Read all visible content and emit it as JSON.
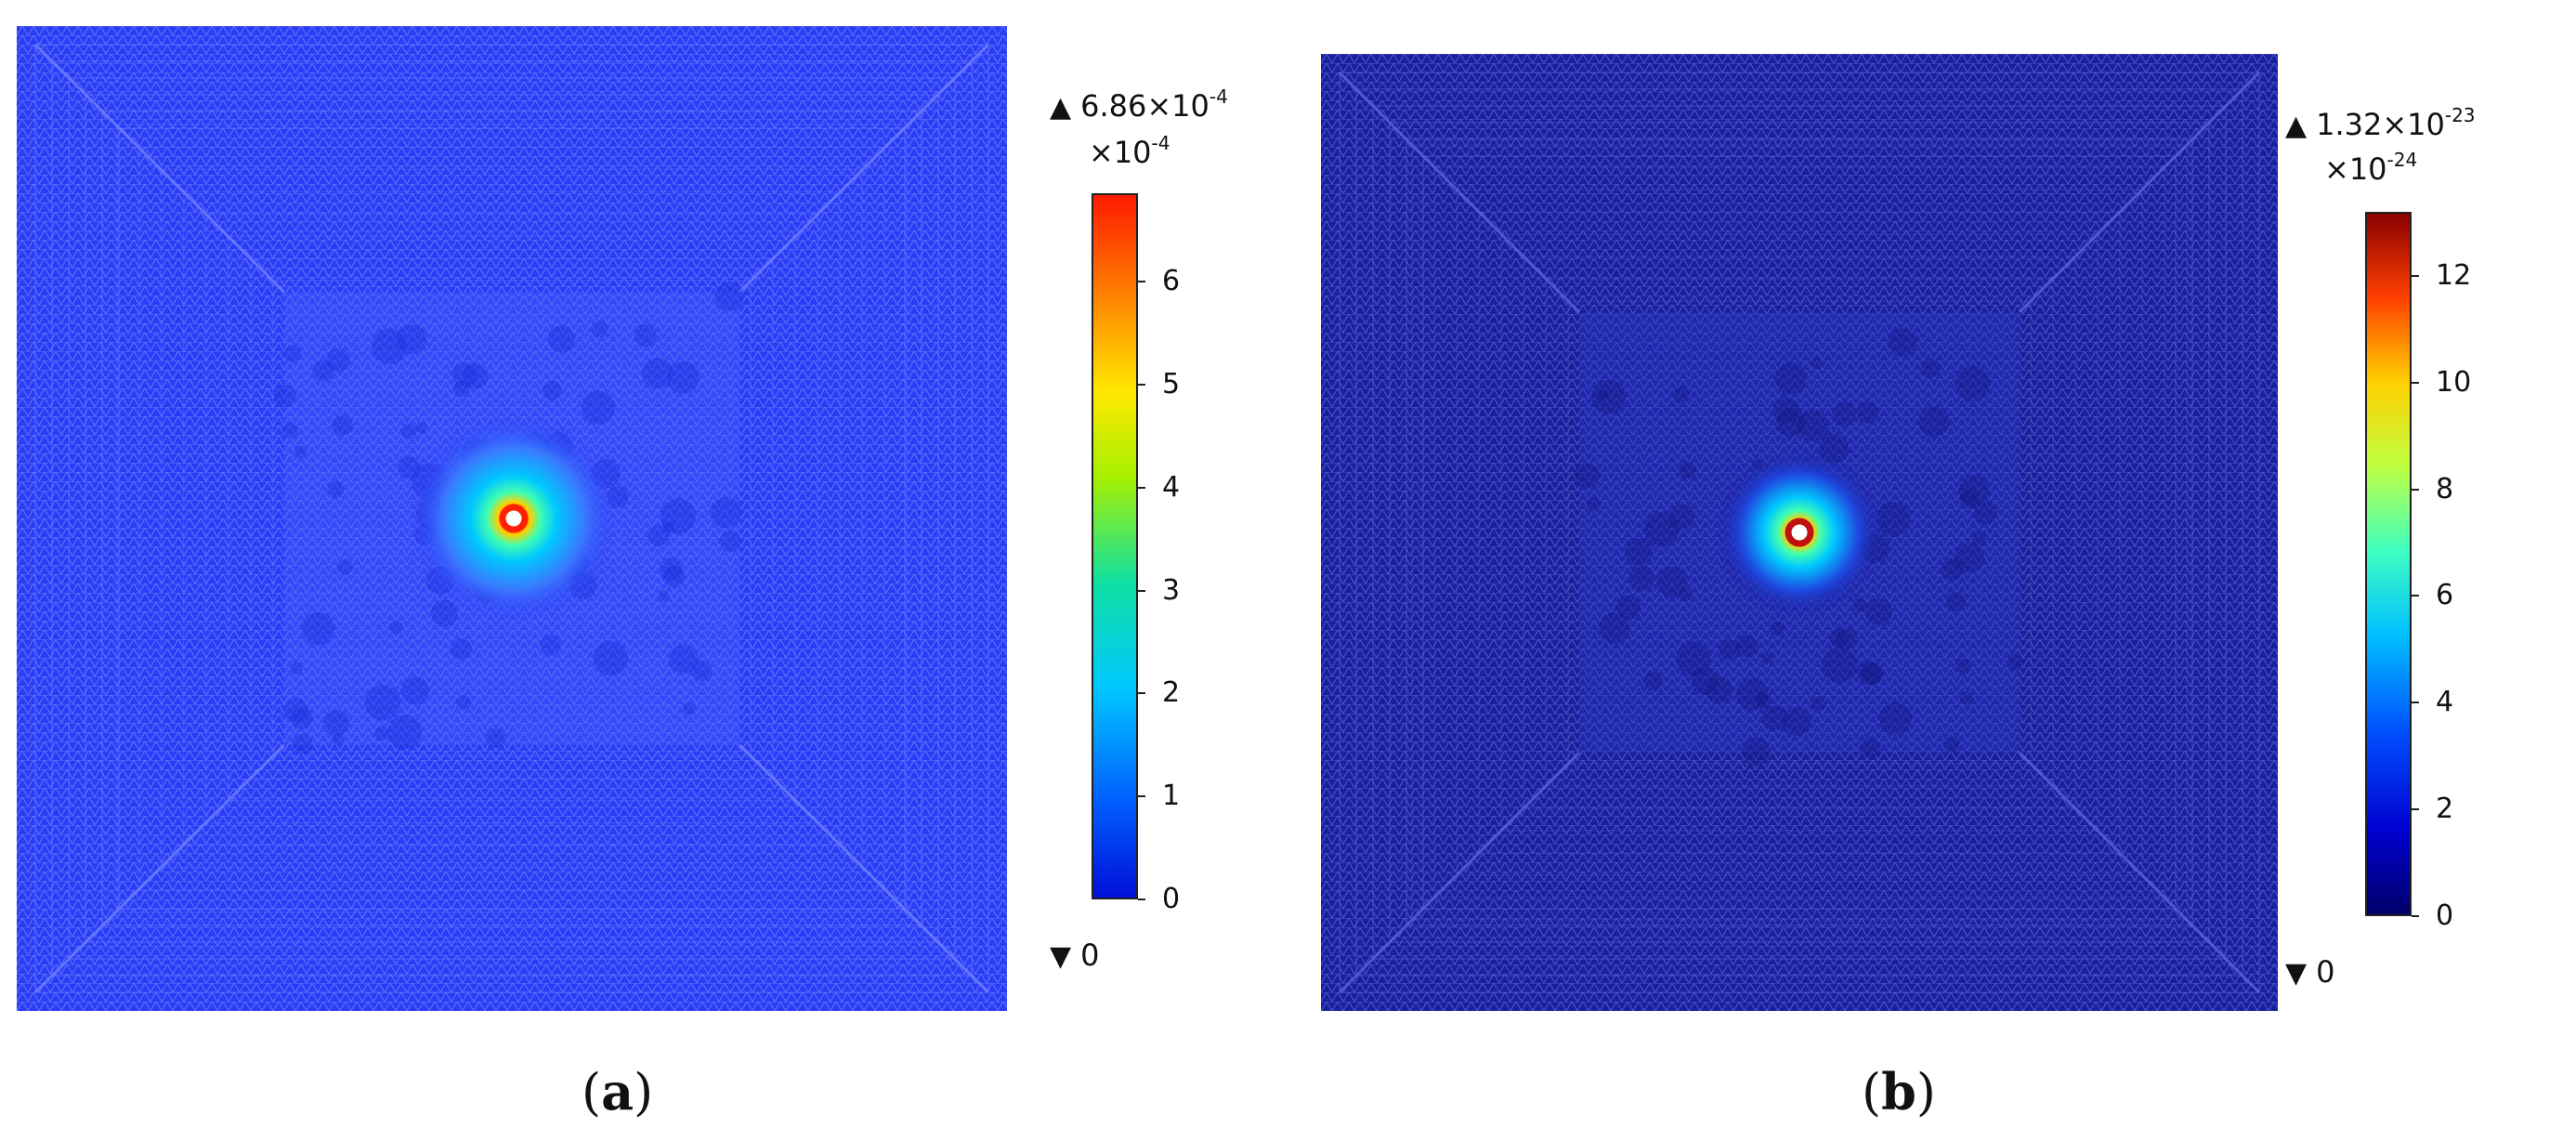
{
  "panels": [
    {
      "id": "a",
      "caption_open": "(",
      "caption_letter": "a",
      "caption_close": ")",
      "colorbar": {
        "max_label": "6.86×10",
        "max_exp": "-4",
        "multiplier_label": "×10",
        "multiplier_exp": "-4",
        "min_label": "0",
        "ticks": [
          "6",
          "5",
          "4",
          "3",
          "2",
          "1",
          "0"
        ],
        "tick_values": [
          6,
          5,
          4,
          3,
          2,
          1,
          0
        ],
        "range": [
          0,
          6.86
        ],
        "colormap": "rainbow"
      },
      "colors": {
        "background": "#2a3cf5",
        "mesh_line": "#6f80ff",
        "hot": "#ff2000"
      }
    },
    {
      "id": "b",
      "caption_open": "(",
      "caption_letter": "b",
      "caption_close": ")",
      "colorbar": {
        "max_label": "1.32×10",
        "max_exp": "-23",
        "multiplier_label": "×10",
        "multiplier_exp": "-24",
        "min_label": "0",
        "ticks": [
          "12",
          "10",
          "8",
          "6",
          "4",
          "2",
          "0"
        ],
        "tick_values": [
          12,
          10,
          8,
          6,
          4,
          2,
          0
        ],
        "range": [
          0,
          13.2
        ],
        "colormap": "jet"
      },
      "colors": {
        "background": "#1a1f9c",
        "mesh_line": "#5a63d8",
        "hot": "#c01010"
      }
    }
  ]
}
